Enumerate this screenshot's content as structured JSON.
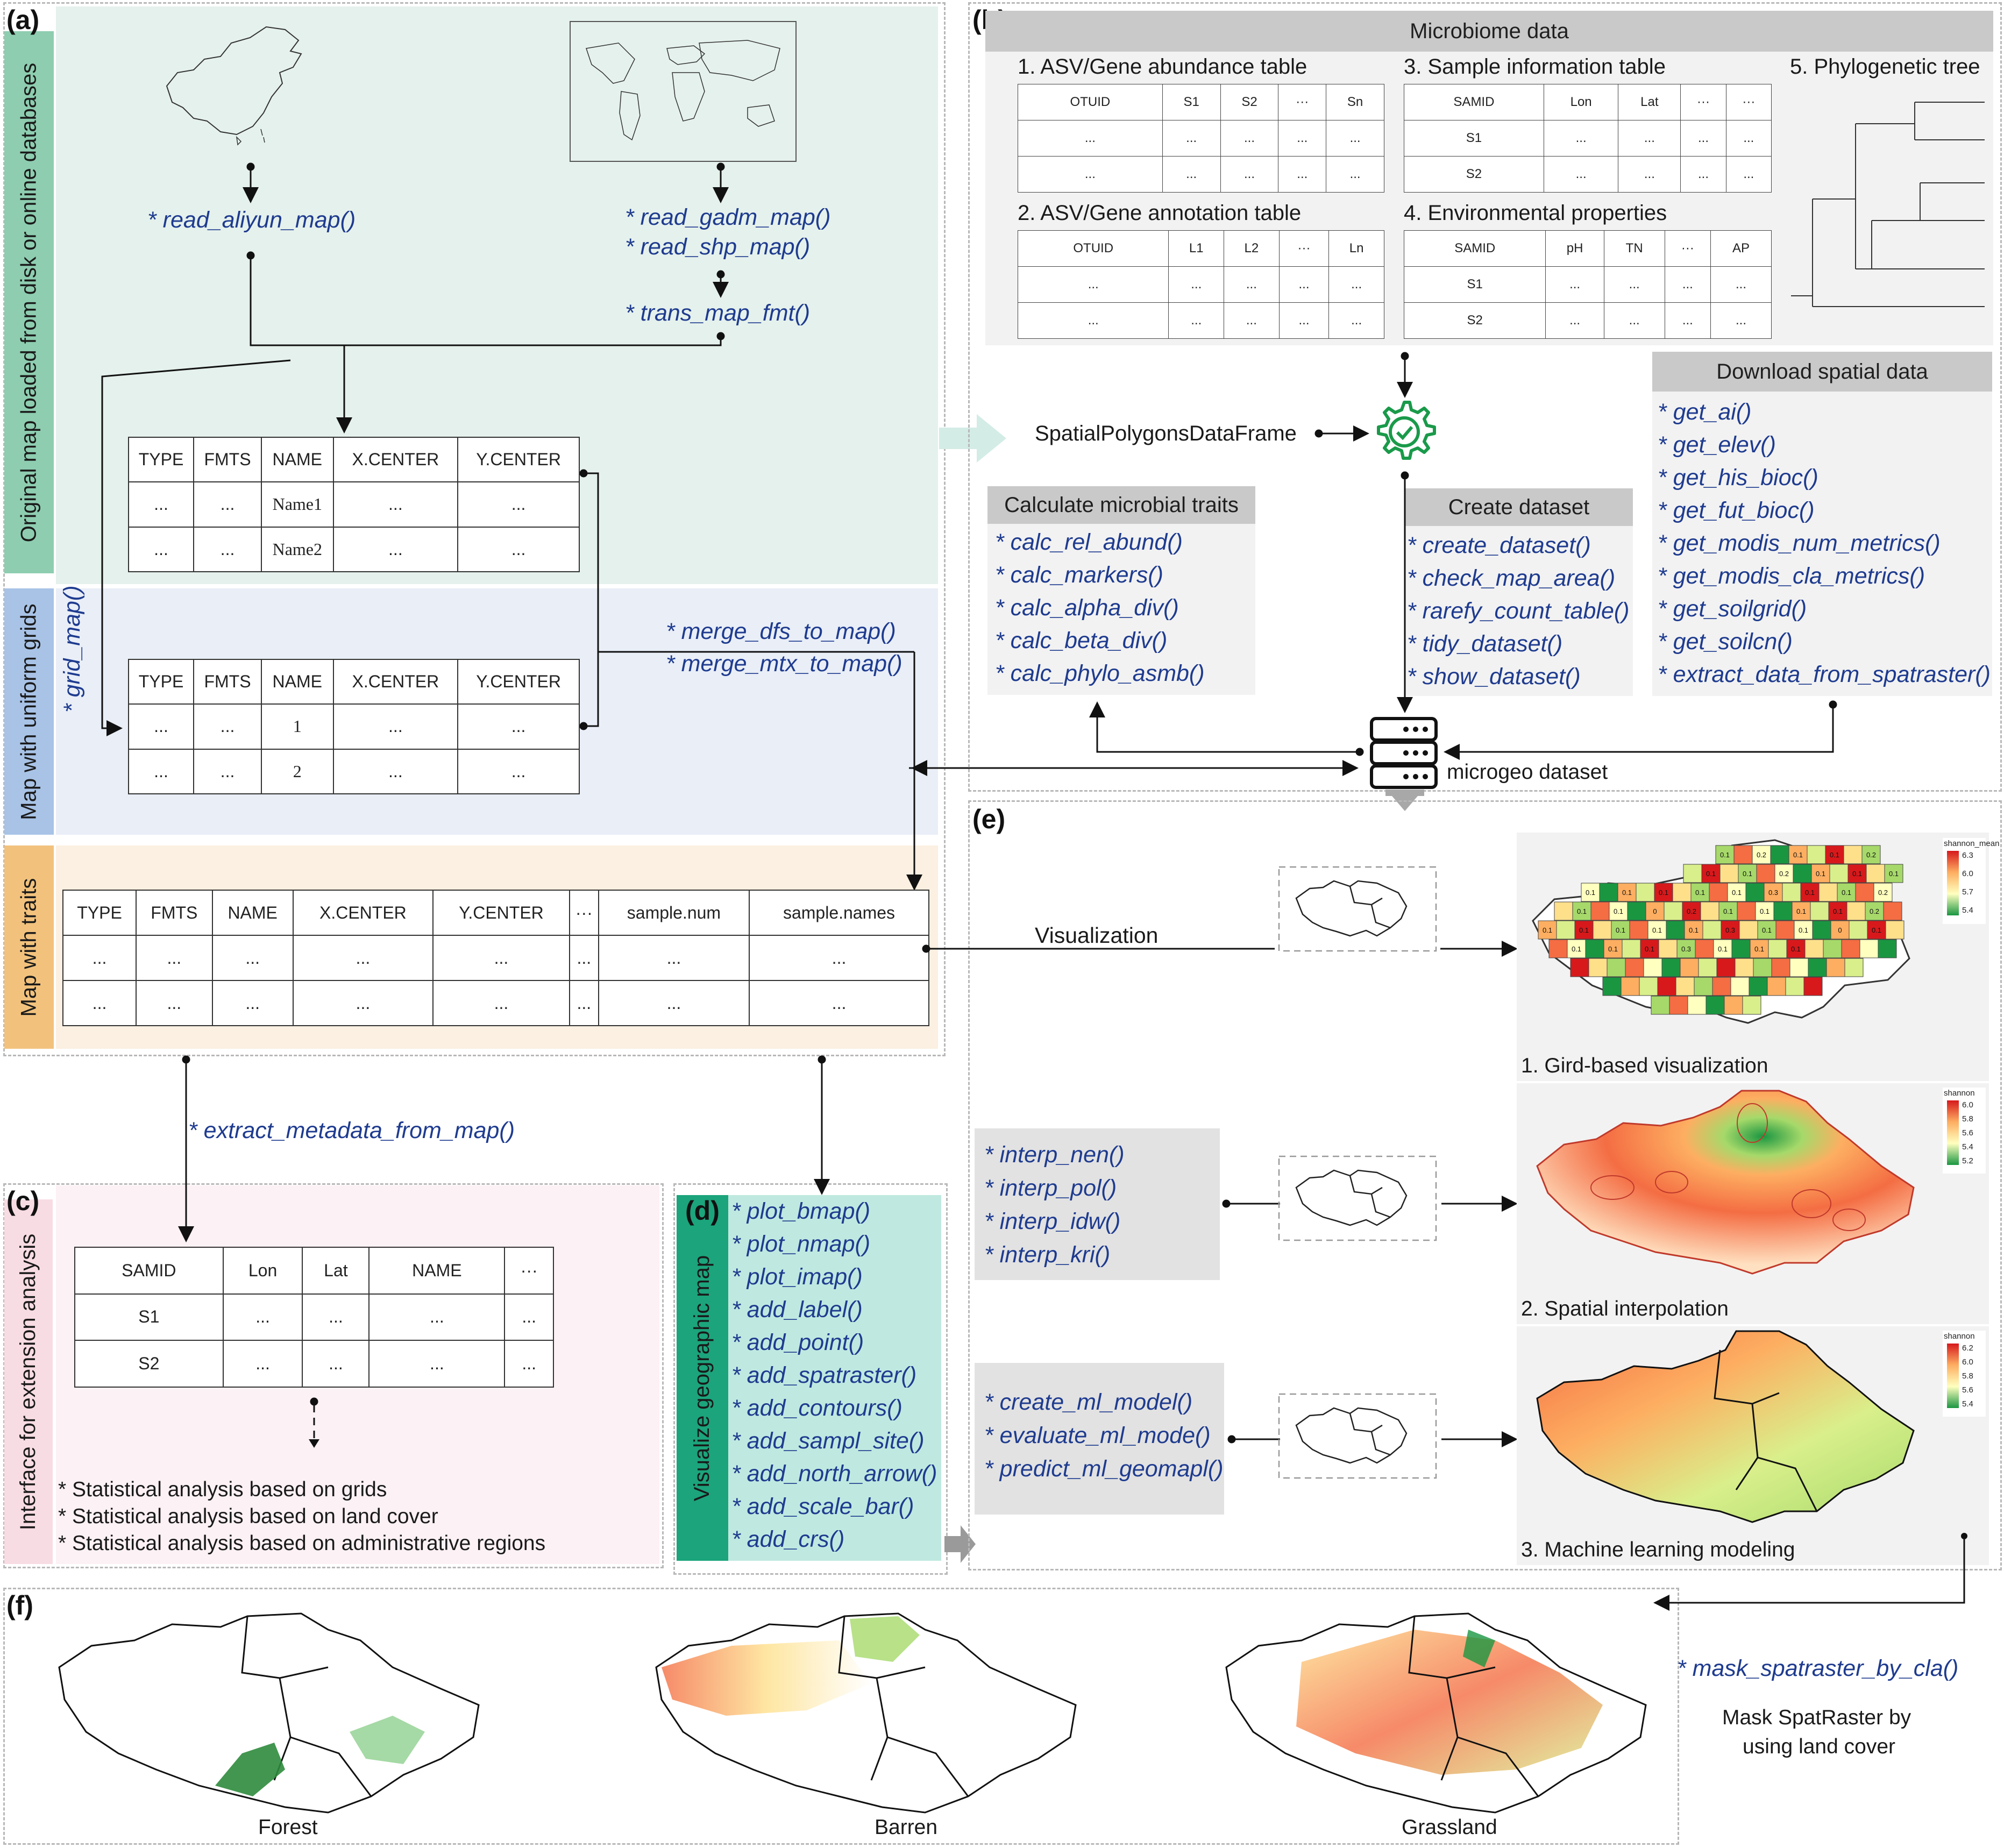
{
  "labels": {
    "a": "(a)",
    "b": "(b)",
    "c": "(c)",
    "d": "(d)",
    "e": "(e)",
    "f": "(f)"
  },
  "colors": {
    "green_panel": "#e5f1ec",
    "green_label": "#8ecdb0",
    "blue_panel": "#e9eef7",
    "blue_label": "#a8c3e6",
    "orange_panel": "#fbf0e1",
    "orange_label": "#f2c27d",
    "pink_panel": "#fcf1f4",
    "teal_panel": "#bfe9e0",
    "teal_label": "#1ca47c",
    "grey_panel": "#f2f2f2",
    "header_grey": "#c9c9c9",
    "function_blue": "#1e3b8f"
  },
  "panel_a": {
    "row1_label": "Original map loaded from disk or online databases",
    "row2_label": "Map with uniform grids",
    "row3_label": "Map with traits",
    "fn_aliyun": "* read_aliyun_map()",
    "fn_gadm": "* read_gadm_map()",
    "fn_shp": "* read_shp_map()",
    "fn_trans": "* trans_map_fmt()",
    "fn_grid": "* grid_map()",
    "fn_merge_dfs": "* merge_dfs_to_map()",
    "fn_merge_mtx": "* merge_mtx_to_map()",
    "table1": {
      "header": [
        "TYPE",
        "FMTS",
        "NAME",
        "X.CENTER",
        "Y.CENTER"
      ],
      "rows": [
        [
          "...",
          "...",
          "Name1",
          "...",
          "..."
        ],
        [
          "...",
          "...",
          "Name2",
          "...",
          "..."
        ]
      ]
    },
    "table2": {
      "header": [
        "TYPE",
        "FMTS",
        "NAME",
        "X.CENTER",
        "Y.CENTER"
      ],
      "rows": [
        [
          "...",
          "...",
          "1",
          "...",
          "..."
        ],
        [
          "...",
          "...",
          "2",
          "...",
          "..."
        ]
      ]
    },
    "table3": {
      "header": [
        "TYPE",
        "FMTS",
        "NAME",
        "X.CENTER",
        "Y.CENTER",
        "···",
        "sample.num",
        "sample.names"
      ],
      "rows": [
        [
          "...",
          "...",
          "...",
          "...",
          "...",
          "...",
          "...",
          "..."
        ],
        [
          "...",
          "...",
          "...",
          "...",
          "...",
          "...",
          "...",
          "..."
        ]
      ]
    }
  },
  "panel_b": {
    "microbiome_header": "Microbiome data",
    "t1_title": "1. ASV/Gene abundance table",
    "t1": {
      "header": [
        "OTUID",
        "S1",
        "S2",
        "···",
        "Sn"
      ],
      "rows": [
        [
          "...",
          "...",
          "...",
          "...",
          "..."
        ],
        [
          "...",
          "...",
          "...",
          "...",
          "..."
        ]
      ]
    },
    "t2_title": "2. ASV/Gene annotation table",
    "t2": {
      "header": [
        "OTUID",
        "L1",
        "L2",
        "···",
        "Ln"
      ],
      "rows": [
        [
          "...",
          "...",
          "...",
          "...",
          "..."
        ],
        [
          "...",
          "...",
          "...",
          "...",
          "..."
        ]
      ]
    },
    "t3_title": "3. Sample information table",
    "t3": {
      "header": [
        "SAMID",
        "Lon",
        "Lat",
        "···",
        "···"
      ],
      "rows": [
        [
          "S1",
          "...",
          "...",
          "...",
          "..."
        ],
        [
          "S2",
          "...",
          "...",
          "...",
          "..."
        ]
      ]
    },
    "t4_title": "4. Environmental properties",
    "t4": {
      "header": [
        "SAMID",
        "pH",
        "TN",
        "···",
        "AP"
      ],
      "rows": [
        [
          "S1",
          "...",
          "...",
          "...",
          "..."
        ],
        [
          "S2",
          "...",
          "...",
          "...",
          "..."
        ]
      ]
    },
    "t5_title": "5. Phylogenetic tree",
    "spdf_label": "SpatialPolygonsDataFrame",
    "calc_header": "Calculate microbial traits",
    "calc_fns": [
      "* calc_rel_abund()",
      "* calc_markers()",
      "* calc_alpha_div()",
      "* calc_beta_div()",
      "* calc_phylo_asmb()"
    ],
    "create_header": "Create dataset",
    "create_fns": [
      "* create_dataset()",
      "* check_map_area()",
      "* rarefy_count_table()",
      "* tidy_dataset()",
      "* show_dataset()"
    ],
    "download_header": "Download spatial data",
    "download_fns": [
      "* get_ai()",
      "* get_elev()",
      "* get_his_bioc()",
      "* get_fut_bioc()",
      "* get_modis_num_metrics()",
      "* get_modis_cla_metrics()",
      "* get_soilgrid()",
      "* get_soilcn()",
      "* extract_data_from_spatraster()"
    ],
    "dataset_label": "microgeo dataset"
  },
  "panel_c": {
    "side_label": "Interface for extension analysis",
    "extract_fn": "* extract_metadata_from_map()",
    "table": {
      "header": [
        "SAMID",
        "Lon",
        "Lat",
        "NAME",
        "···"
      ],
      "rows": [
        [
          "S1",
          "...",
          "...",
          "...",
          "..."
        ],
        [
          "S2",
          "...",
          "...",
          "...",
          "..."
        ]
      ]
    },
    "stats": [
      "* Statistical analysis based on grids",
      "* Statistical analysis based on land cover",
      "* Statistical analysis based on administrative regions"
    ]
  },
  "panel_d": {
    "side_label": "Visualize geographic map",
    "fns": [
      "* plot_bmap()",
      "* plot_nmap()",
      "* plot_imap()",
      "* add_label()",
      "* add_point()",
      "* add_spatraster()",
      "* add_contours()",
      "* add_sampl_site()",
      "* add_north_arrow()",
      "* add_scale_bar()",
      "* add_crs()"
    ]
  },
  "panel_e": {
    "visualization_label": "Visualization",
    "interp_fns": [
      "* interp_nen()",
      "* interp_pol()",
      "* interp_idw()",
      "* interp_kri()"
    ],
    "ml_fns": [
      "* create_ml_model()",
      "* evaluate_ml_mode()",
      "* predict_ml_geomapl()"
    ],
    "cap1": "1. Gird-based visualization",
    "cap2": "2. Spatial interpolation",
    "cap3": "3. Machine learning modeling",
    "legend1": {
      "title": "shannon_mean",
      "ticks": [
        "6.3",
        "6.0",
        "5.7",
        "5.4"
      ]
    },
    "legend2": {
      "title": "shannon",
      "ticks": [
        "6.0",
        "5.8",
        "5.6",
        "5.4",
        "5.2"
      ]
    },
    "legend3": {
      "title": "shannon",
      "ticks": [
        "6.2",
        "6.0",
        "5.8",
        "5.6",
        "5.4"
      ]
    },
    "cell_values": [
      "0.1",
      "0.2",
      "0.1",
      "0.1",
      "0.2",
      "0.1",
      "0.1",
      "0.2",
      "0.1",
      "0.1",
      "0.1",
      "0.1",
      "0.1",
      "0.1",
      "0.1",
      "0.1",
      "0.3",
      "0.1",
      "0.1",
      "0.2",
      "0.1",
      "0.1",
      "0",
      "0.2",
      "0.1",
      "0.1",
      "0.1",
      "0.1",
      "0.2",
      "0.1",
      "0.1",
      "0.1",
      "0.1",
      "0.1",
      "0.3",
      "0.1",
      "0.1",
      "0",
      "0.1",
      "0.1",
      "0.1",
      "0.1",
      "0.3",
      "0.1",
      "0.1",
      "0.1"
    ]
  },
  "panel_f": {
    "mask_fn": "* mask_spatraster_by_cla()",
    "mask_line1": "Mask SpatRaster by",
    "mask_line2": "using land cover",
    "maps": [
      "Forest",
      "Barren",
      "Grassland"
    ]
  }
}
